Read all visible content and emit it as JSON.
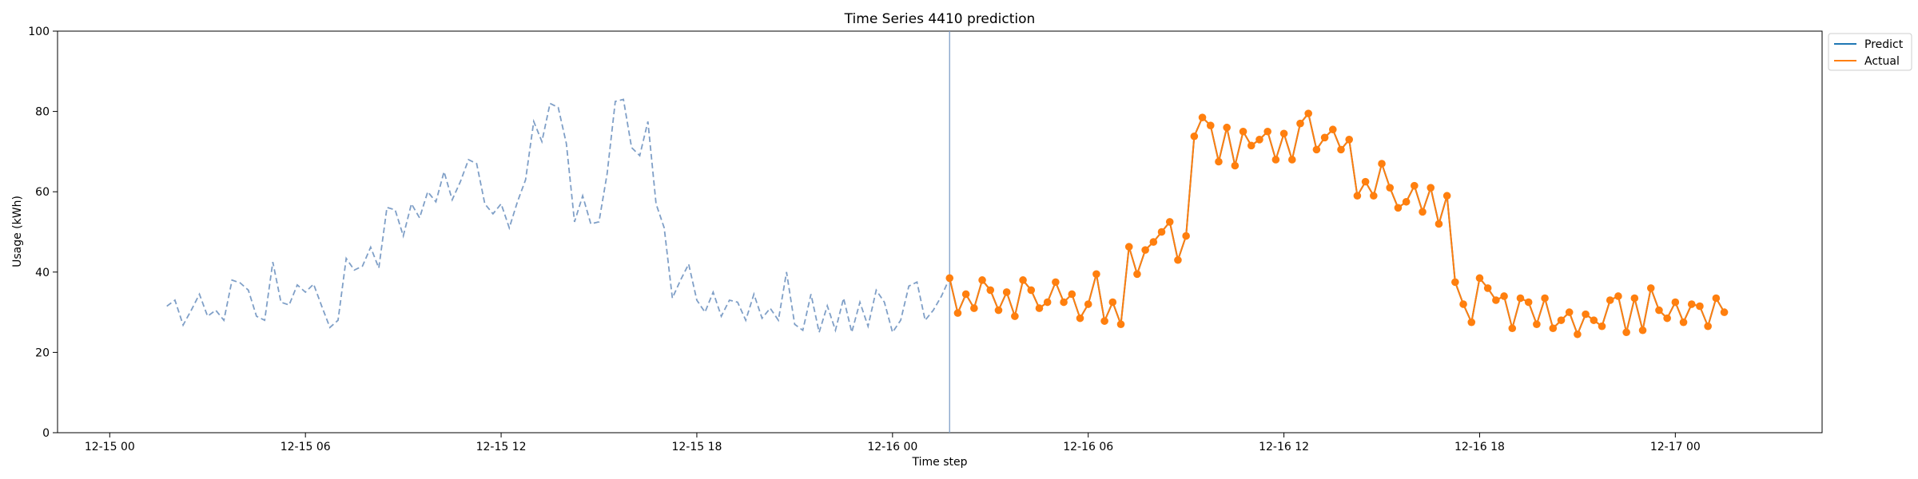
{
  "chart_data": {
    "type": "line",
    "title": "Time Series 4410 prediction",
    "xlabel": "Time step",
    "ylabel": "Usage (kWh)",
    "ylim": [
      0,
      100
    ],
    "xlim": [
      "2024-12-14T22:24",
      "2024-12-17T04:30"
    ],
    "yticks": [
      0,
      20,
      40,
      60,
      80,
      100
    ],
    "xticks": [
      {
        "t": "2024-12-15T00:00",
        "label": "12-15 00"
      },
      {
        "t": "2024-12-15T06:00",
        "label": "12-15 06"
      },
      {
        "t": "2024-12-15T12:00",
        "label": "12-15 12"
      },
      {
        "t": "2024-12-15T18:00",
        "label": "12-15 18"
      },
      {
        "t": "2024-12-16T00:00",
        "label": "12-16 00"
      },
      {
        "t": "2024-12-16T06:00",
        "label": "12-16 06"
      },
      {
        "t": "2024-12-16T12:00",
        "label": "12-16 12"
      },
      {
        "t": "2024-12-16T18:00",
        "label": "12-16 18"
      },
      {
        "t": "2024-12-17T00:00",
        "label": "12-17 00"
      }
    ],
    "grid": false,
    "legend_position": "outside top-right",
    "split_time": "2024-12-16T01:45",
    "colors": {
      "history": "#7f9fc7",
      "predict": "#1f77b4",
      "actual": "#ff7f0e",
      "split_line": "#7f9fc7"
    },
    "series": [
      {
        "name": "",
        "style": "dashed",
        "start": "2024-12-15T01:45",
        "step_minutes": 15,
        "values": [
          31.5,
          33,
          26.8,
          30.5,
          34.5,
          29,
          30.5,
          28,
          38,
          37.3,
          35.5,
          29,
          28,
          42.5,
          32.5,
          31.8,
          36.8,
          35,
          37,
          31.5,
          26.2,
          28,
          43.4,
          40.5,
          41.5,
          46.2,
          41,
          56.1,
          55.5,
          49,
          57,
          53.5,
          60,
          57.5,
          65,
          58,
          62.5,
          68,
          67,
          57,
          54.5,
          57,
          51,
          57.5,
          63,
          77.5,
          72.5,
          82,
          81,
          72,
          52.5,
          59,
          52,
          52.5,
          64.5,
          82.5,
          83,
          71,
          69,
          77.5,
          57,
          51,
          33.5,
          38,
          42,
          33,
          30,
          35,
          29,
          33,
          32.5,
          28,
          34.5,
          28.5,
          31,
          28,
          40,
          27,
          25.5,
          34.5,
          25,
          31.6,
          25.5,
          33.5,
          25,
          32.5,
          26.5,
          35.5,
          32.5,
          25,
          28,
          36.5,
          37.5,
          28,
          30.5,
          34,
          38.5
        ]
      },
      {
        "name": "Predict",
        "style": "solid",
        "start": "2024-12-16T01:45",
        "step_minutes": 15,
        "values": [
          38.5,
          29.8,
          34.5,
          31,
          38,
          35.5,
          30.5,
          35,
          29,
          38,
          35.5,
          31,
          32.5,
          37.5,
          32.5,
          34.5,
          28.5,
          32,
          39.5,
          27.8,
          32.5,
          27,
          46.3,
          39.5,
          45.5,
          47.5,
          50,
          52.5,
          43,
          49,
          73.8,
          78.5,
          76.5,
          67.5,
          76,
          66.5,
          75,
          71.5,
          73,
          75,
          68,
          74.5,
          68,
          77,
          79.5,
          70.5,
          73.5,
          75.5,
          70.5,
          73,
          59,
          62.5,
          59,
          67,
          61,
          56,
          57.5,
          61.5,
          55,
          61,
          52,
          59,
          37.5,
          32,
          27.5,
          38.5,
          36,
          33,
          34,
          26,
          33.5,
          32.5,
          27,
          33.5,
          26,
          28,
          30,
          24.5,
          29.5,
          28,
          26.5,
          33,
          34,
          25,
          33.5,
          25.5,
          36,
          30.5,
          28.5,
          32.5,
          27.5,
          32,
          31.5,
          26.5,
          33.5,
          30
        ]
      },
      {
        "name": "Actual",
        "style": "solid-markers",
        "start": "2024-12-16T01:45",
        "step_minutes": 15,
        "values": [
          38.5,
          29.8,
          34.5,
          31,
          38,
          35.5,
          30.5,
          35,
          29,
          38,
          35.5,
          31,
          32.5,
          37.5,
          32.5,
          34.5,
          28.5,
          32,
          39.5,
          27.8,
          32.5,
          27,
          46.3,
          39.5,
          45.5,
          47.5,
          50,
          52.5,
          43,
          49,
          73.8,
          78.5,
          76.5,
          67.5,
          76,
          66.5,
          75,
          71.5,
          73,
          75,
          68,
          74.5,
          68,
          77,
          79.5,
          70.5,
          73.5,
          75.5,
          70.5,
          73,
          59,
          62.5,
          59,
          67,
          61,
          56,
          57.5,
          61.5,
          55,
          61,
          52,
          59,
          37.5,
          32,
          27.5,
          38.5,
          36,
          33,
          34,
          26,
          33.5,
          32.5,
          27,
          33.5,
          26,
          28,
          30,
          24.5,
          29.5,
          28,
          26.5,
          33,
          34,
          25,
          33.5,
          25.5,
          36,
          30.5,
          28.5,
          32.5,
          27.5,
          32,
          31.5,
          26.5,
          33.5,
          30
        ]
      }
    ]
  }
}
